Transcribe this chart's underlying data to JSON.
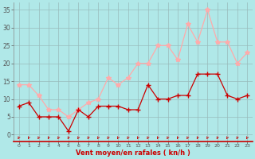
{
  "x": [
    0,
    1,
    2,
    3,
    4,
    5,
    6,
    7,
    8,
    9,
    10,
    11,
    12,
    13,
    14,
    15,
    16,
    17,
    18,
    19,
    20,
    21,
    22,
    23
  ],
  "vent_moyen": [
    8,
    9,
    5,
    5,
    5,
    1,
    7,
    5,
    8,
    8,
    8,
    7,
    7,
    14,
    10,
    10,
    11,
    11,
    17,
    17,
    17,
    11,
    10,
    11
  ],
  "rafales": [
    14,
    14,
    11,
    7,
    7,
    5,
    7,
    9,
    10,
    16,
    14,
    16,
    20,
    20,
    25,
    25,
    21,
    31,
    26,
    35,
    26,
    26,
    20,
    23
  ],
  "color_moyen": "#cc0000",
  "color_rafales": "#ffaaaa",
  "bg_color": "#b0e8e8",
  "grid_color": "#99bbbb",
  "xlabel": "Vent moyen/en rafales ( kn/h )",
  "xlabel_color": "#cc0000",
  "yticks": [
    0,
    5,
    10,
    15,
    20,
    25,
    30,
    35
  ],
  "ylim": [
    -2,
    37
  ],
  "xlim": [
    -0.5,
    23.5
  ],
  "arrow_color": "#cc0000",
  "tick_color": "#555555",
  "spine_color": "#888888"
}
